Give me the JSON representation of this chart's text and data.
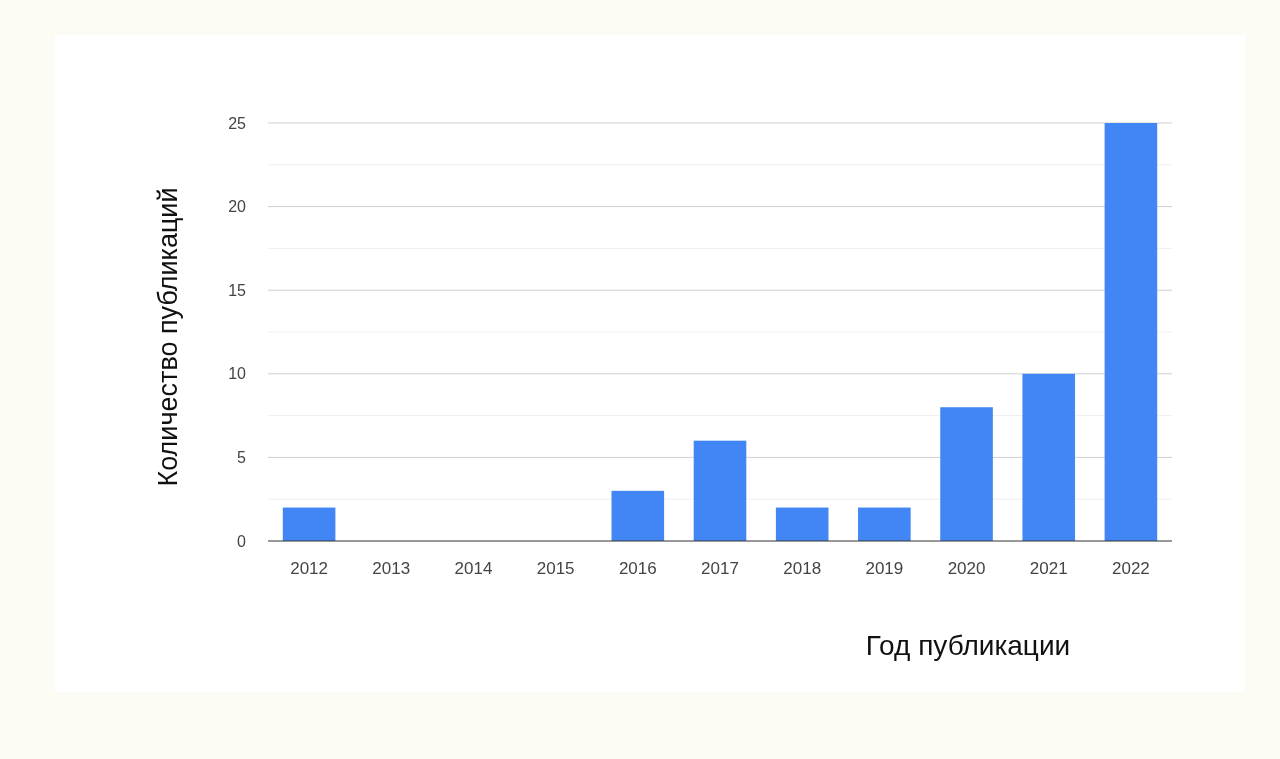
{
  "chart_data": {
    "type": "bar",
    "xlabel": "Год публикации",
    "ylabel": "Количество публикаций",
    "categories": [
      "2012",
      "2013",
      "2014",
      "2015",
      "2016",
      "2017",
      "2018",
      "2019",
      "2020",
      "2021",
      "2022"
    ],
    "values": [
      2,
      0,
      0,
      0,
      3,
      6,
      2,
      2,
      8,
      10,
      25
    ],
    "color": "#4285f4",
    "ylim": [
      0,
      25
    ],
    "yticks": [
      0,
      {
        "value": 2.5,
        "label": null
      },
      5,
      {
        "value": 7.5,
        "label": null
      },
      10,
      {
        "value": 12.5,
        "label": null
      },
      15,
      {
        "value": 17.5,
        "label": null
      },
      20,
      {
        "value": 22.5,
        "label": null
      },
      25
    ],
    "grid": "y"
  }
}
